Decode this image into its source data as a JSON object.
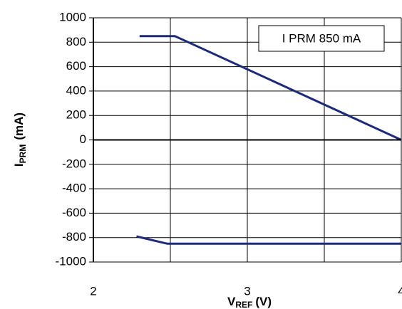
{
  "chart_data": {
    "type": "line",
    "annotation": "I PRM 850 mA",
    "ylabel": {
      "main": "I",
      "sub": "PRM",
      "unit": "(mA)"
    },
    "xlabel": {
      "main": "V",
      "sub": "REF",
      "unit": "(V)"
    },
    "xlim": [
      2,
      4
    ],
    "xticks": [
      2,
      3,
      4
    ],
    "x_minor_gridlines": [
      2.5,
      3.5
    ],
    "ylim": [
      -1000,
      1000
    ],
    "yticks": [
      -1000,
      -800,
      -600,
      -400,
      -200,
      0,
      200,
      400,
      600,
      800,
      1000
    ],
    "grid": true,
    "series": [
      {
        "color": "#1c2a7a",
        "x": [
          2.3,
          2.53,
          4
        ],
        "values": [
          850,
          850,
          0
        ]
      },
      {
        "color": "#1c2a7a",
        "x": [
          2.28,
          2.48,
          4
        ],
        "values": [
          -790,
          -850,
          -850
        ]
      }
    ]
  }
}
